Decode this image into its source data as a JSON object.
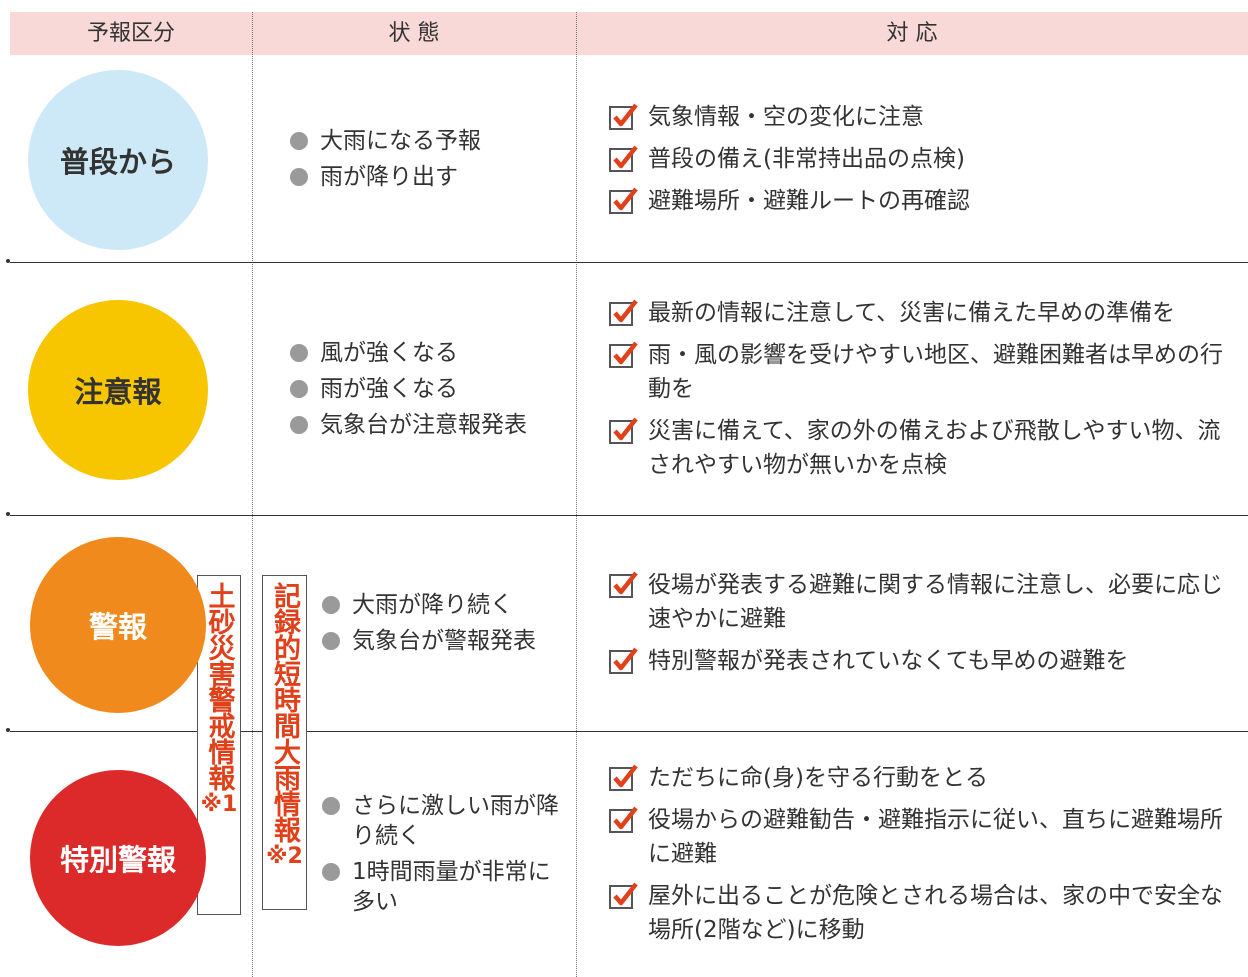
{
  "header": {
    "columns": [
      "予報区分",
      "状 態",
      "対 応"
    ]
  },
  "rows": [
    {
      "level": "普段から",
      "states": [
        "大雨になる予報",
        "雨が降り出す"
      ],
      "actions": [
        "気象情報・空の変化に注意",
        "普段の備え(非常持出品の点検)",
        "避難場所・避難ルートの再確認"
      ]
    },
    {
      "level": "注意報",
      "states": [
        "風が強くなる",
        "雨が強くなる",
        "気象台が注意報発表"
      ],
      "actions": [
        "最新の情報に注意して、災害に備えた早めの準備を",
        "雨・風の影響を受けやすい地区、避難困難者は早めの行動を",
        "災害に備えて、家の外の備えおよび飛散しやすい物、流されやすい物が無いかを点検"
      ]
    },
    {
      "level": "警報",
      "states": [
        "大雨が降り続く",
        "気象台が警報発表"
      ],
      "actions": [
        "役場が発表する避難に関する情報に注意し、必要に応じ速やかに避難",
        "特別警報が発表されていなくても早めの避難を"
      ]
    },
    {
      "level": "特別警報",
      "states": [
        "さらに激しい雨が降り続く",
        "1時間雨量が非常に多い"
      ],
      "actions": [
        "ただちに命(身)を守る行動をとる",
        "役場からの避難勧告・避難指示に従い、直ちに避難場所に避難",
        "屋外に出ることが危険とされる場合は、家の中で安全な場所(2階など)に移動"
      ]
    }
  ],
  "side_labels": [
    {
      "text": "土砂災害警戒情報",
      "note": "※1"
    },
    {
      "text": "記録的短時間大雨情報",
      "note": "※2"
    }
  ]
}
